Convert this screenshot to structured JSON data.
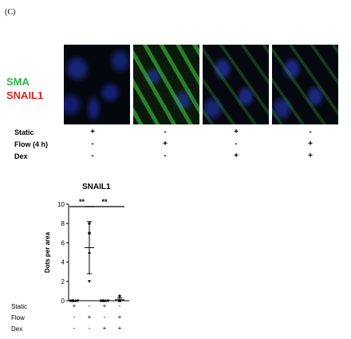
{
  "panel_label": "(C)",
  "fluorescence_labels": [
    {
      "text": "SMA",
      "color": "#2bb34a"
    },
    {
      "text": "SNAIL1",
      "color": "#e02020"
    }
  ],
  "condition_labels": [
    "Static",
    "Flow (4 h)",
    "Dex"
  ],
  "condition_matrix": [
    [
      "+",
      "-",
      "+",
      "-"
    ],
    [
      "-",
      "+",
      "-",
      "+"
    ],
    [
      "-",
      "-",
      "+",
      "+"
    ]
  ],
  "chart_data": {
    "type": "scatter",
    "title": "SNAIL1",
    "ylabel": "Dots per area",
    "ylim": [
      0,
      10
    ],
    "yticks": [
      0,
      2,
      4,
      6,
      8,
      10
    ],
    "groups": [
      {
        "points": [
          0,
          0,
          0,
          0
        ],
        "mean": 0,
        "sd": 0
      },
      {
        "points": [
          8,
          7,
          5,
          2
        ],
        "mean": 5.5,
        "sd": 2.7
      },
      {
        "points": [
          0,
          0,
          0,
          0
        ],
        "mean": 0,
        "sd": 0
      },
      {
        "points": [
          0.5,
          0,
          0,
          0
        ],
        "mean": 0.1,
        "sd": 0.2
      }
    ],
    "significance": [
      {
        "from": 0,
        "to": 1,
        "label": "**"
      },
      {
        "from": 1,
        "to": 3,
        "label": "**"
      }
    ]
  },
  "chart_condition_labels": [
    "Static",
    "Flow",
    "Dex"
  ],
  "chart_condition_matrix": [
    [
      "+",
      "-",
      "+",
      "-"
    ],
    [
      "-",
      "+",
      "-",
      "+"
    ],
    [
      "-",
      "-",
      "+",
      "+"
    ]
  ]
}
